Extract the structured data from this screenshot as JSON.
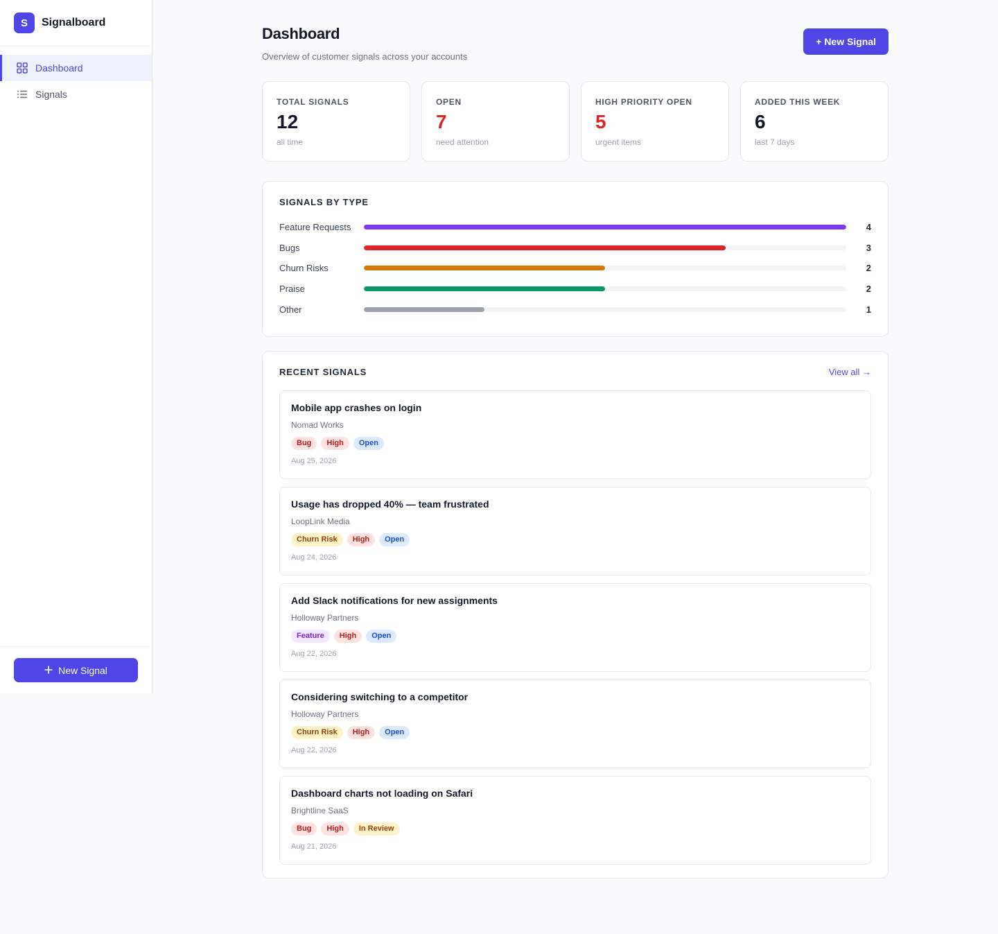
{
  "app": {
    "logo_letter": "S",
    "name": "Signalboard"
  },
  "sidebar": {
    "items": [
      {
        "label": "Dashboard",
        "icon": "grid-icon",
        "active": true
      },
      {
        "label": "Signals",
        "icon": "list-icon",
        "active": false
      }
    ],
    "new_signal_label": "New Signal"
  },
  "header": {
    "title": "Dashboard",
    "subtitle": "Overview of customer signals across your accounts",
    "new_signal_label": "+ New Signal"
  },
  "stats": [
    {
      "label": "TOTAL SIGNALS",
      "value": "12",
      "sub": "all time",
      "color": "#111827"
    },
    {
      "label": "OPEN",
      "value": "7",
      "sub": "need attention",
      "color": "#dc2626"
    },
    {
      "label": "HIGH PRIORITY OPEN",
      "value": "5",
      "sub": "urgent items",
      "color": "#dc2626"
    },
    {
      "label": "ADDED THIS WEEK",
      "value": "6",
      "sub": "last 7 days",
      "color": "#111827"
    }
  ],
  "signals_by_type": {
    "title": "SIGNALS BY TYPE",
    "max": 4,
    "rows": [
      {
        "label": "Feature Requests",
        "count": 4,
        "color": "#7c3aed"
      },
      {
        "label": "Bugs",
        "count": 3,
        "color": "#dc2626"
      },
      {
        "label": "Churn Risks",
        "count": 2,
        "color": "#d97706"
      },
      {
        "label": "Praise",
        "count": 2,
        "color": "#059669"
      },
      {
        "label": "Other",
        "count": 1,
        "color": "#9ca3af"
      }
    ]
  },
  "recent": {
    "title": "RECENT SIGNALS",
    "view_all_label": "View all →",
    "items": [
      {
        "title": "Mobile app crashes on login",
        "account": "Nomad Works",
        "date": "Aug 25, 2026",
        "tags": [
          {
            "label": "Bug",
            "bg": "#fee2e2",
            "fg": "#b91c1c"
          },
          {
            "label": "High",
            "bg": "#fee2e2",
            "fg": "#b91c1c"
          },
          {
            "label": "Open",
            "bg": "#dbeafe",
            "fg": "#1d4ed8"
          }
        ]
      },
      {
        "title": "Usage has dropped 40% — team frustrated",
        "account": "LoopLink Media",
        "date": "Aug 24, 2026",
        "tags": [
          {
            "label": "Churn Risk",
            "bg": "#fef3c7",
            "fg": "#92400e"
          },
          {
            "label": "High",
            "bg": "#fee2e2",
            "fg": "#b91c1c"
          },
          {
            "label": "Open",
            "bg": "#dbeafe",
            "fg": "#1d4ed8"
          }
        ]
      },
      {
        "title": "Add Slack notifications for new assignments",
        "account": "Holloway Partners",
        "date": "Aug 22, 2026",
        "tags": [
          {
            "label": "Feature",
            "bg": "#f3e8ff",
            "fg": "#7e22ce"
          },
          {
            "label": "High",
            "bg": "#fee2e2",
            "fg": "#b91c1c"
          },
          {
            "label": "Open",
            "bg": "#dbeafe",
            "fg": "#1d4ed8"
          }
        ]
      },
      {
        "title": "Considering switching to a competitor",
        "account": "Holloway Partners",
        "date": "Aug 22, 2026",
        "tags": [
          {
            "label": "Churn Risk",
            "bg": "#fef3c7",
            "fg": "#92400e"
          },
          {
            "label": "High",
            "bg": "#fee2e2",
            "fg": "#b91c1c"
          },
          {
            "label": "Open",
            "bg": "#dbeafe",
            "fg": "#1d4ed8"
          }
        ]
      },
      {
        "title": "Dashboard charts not loading on Safari",
        "account": "Brightline SaaS",
        "date": "Aug 21, 2026",
        "tags": [
          {
            "label": "Bug",
            "bg": "#fee2e2",
            "fg": "#b91c1c"
          },
          {
            "label": "High",
            "bg": "#fee2e2",
            "fg": "#b91c1c"
          },
          {
            "label": "In Review",
            "bg": "#fef3c7",
            "fg": "#92400e"
          }
        ]
      }
    ]
  }
}
